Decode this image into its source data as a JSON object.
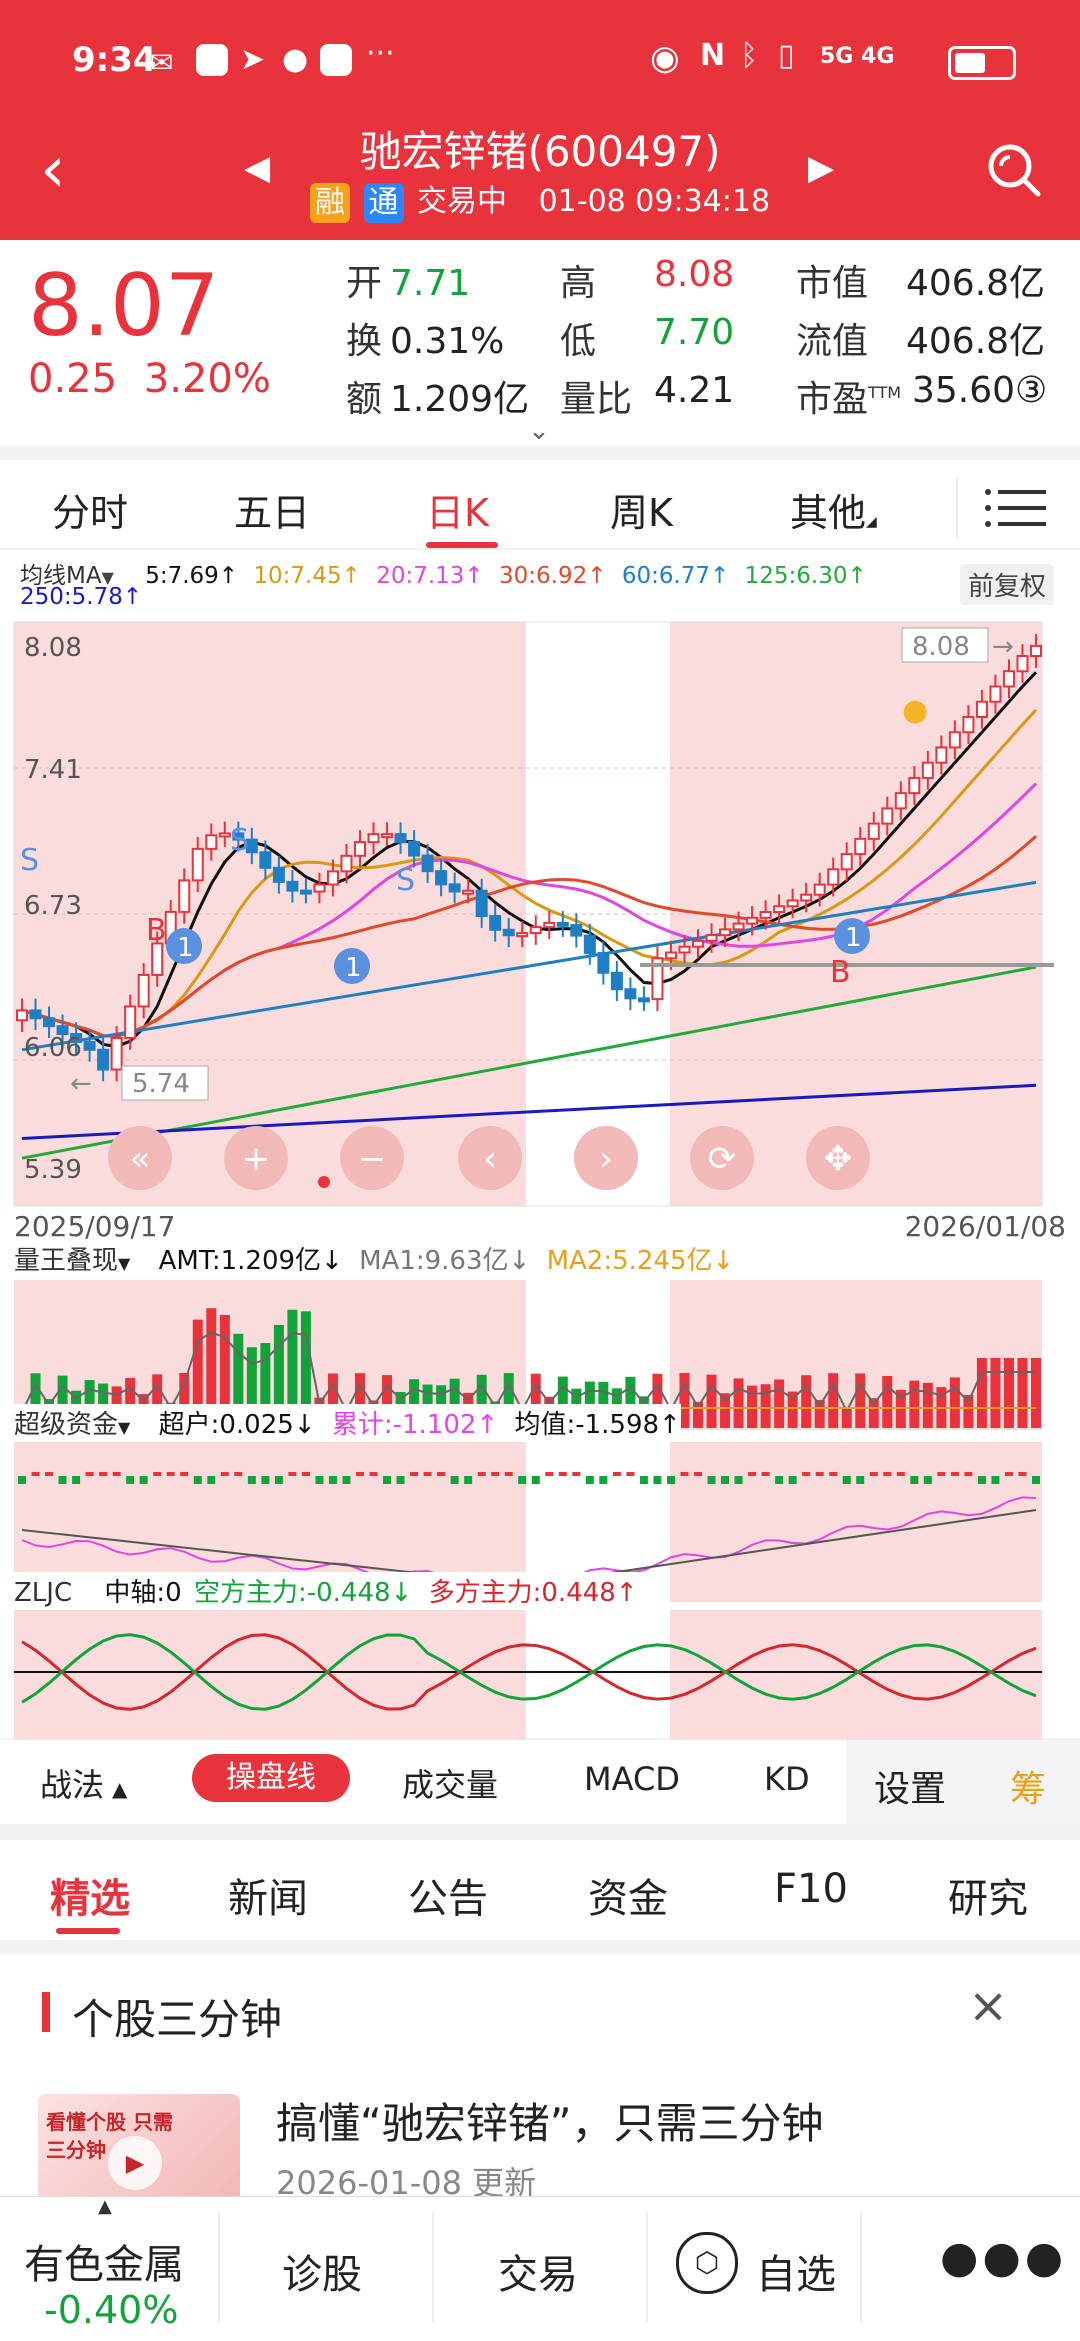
{
  "status": {
    "time": "9:34",
    "right": "5G 4G"
  },
  "header": {
    "title": "驰宏锌锗(600497)",
    "badge_rong": "融",
    "badge_tong": "通",
    "status_text": "交易中",
    "datetime": "01-08 09:34:18"
  },
  "quote": {
    "price": "8.07",
    "change": "0.25",
    "change_pct": "3.20%",
    "open_lbl": "开",
    "open": "7.71",
    "turnover_lbl": "换",
    "turnover": "0.31%",
    "amount_lbl": "额",
    "amount": "1.209亿",
    "high_lbl": "高",
    "high": "8.08",
    "low_lbl": "低",
    "low": "7.70",
    "vol_ratio_lbl": "量比",
    "vol_ratio": "4.21",
    "mktcap_lbl": "市值",
    "mktcap": "406.8亿",
    "float_lbl": "流值",
    "float_cap": "406.8亿",
    "pe_lbl": "市盈",
    "pe_sup": "TTM",
    "pe": "35.60③"
  },
  "tabs": [
    "分时",
    "五日",
    "日K",
    "周K",
    "其他"
  ],
  "chart": {
    "ma_label": "均线MA",
    "ma5": "5:7.69↑",
    "ma10": "10:7.45↑",
    "ma20": "20:7.13↑",
    "ma30": "30:6.92↑",
    "ma60": "60:6.77↑",
    "ma125": "125:6.30↑",
    "ma250": "250:5.78↑",
    "adjust": "前复权",
    "y_top": "8.08",
    "y2": "7.41",
    "y3": "6.73",
    "y4": "6.06",
    "y_bottom": "5.39",
    "high_tag": "8.08",
    "low_tag": "5.74",
    "date_start": "2025/09/17",
    "date_end": "2026/01/08",
    "vol_name": "量王叠现",
    "amt": "AMT:1.209亿↓",
    "ma1": "MA1:9.63亿↓",
    "ma2": "MA2:5.245亿↓",
    "fund_name": "超级资金",
    "super": "超户:0.025↓",
    "cum": "累计:-1.102↑",
    "avg": "均值:-1.598↑",
    "zljc_name": "ZLJC",
    "axis": "中轴:0",
    "bear": "空方主力:-0.448↓",
    "bull": "多方主力:0.448↑",
    "mark_s": "S",
    "mark_b": "B",
    "mark_1": "1"
  },
  "indicators": {
    "zhanfa": "战法",
    "caopan": "操盘线",
    "volume": "成交量",
    "macd": "MACD",
    "kd": "KD",
    "settings": "设置",
    "chou": "筹"
  },
  "segments": [
    "精选",
    "新闻",
    "公告",
    "资金",
    "F10",
    "研究"
  ],
  "article": {
    "section": "个股三分钟",
    "headline": "搞懂“驰宏锌锗”，只需三分钟",
    "date": "2026-01-08 更新",
    "thumb_text": "看懂个股 只需三分钟"
  },
  "bottom": {
    "sector": "有色金属",
    "sector_chg": "-0.40%",
    "diagnose": "诊股",
    "trade": "交易",
    "watch": "自选"
  },
  "colors": {
    "red": "#e8333d",
    "green": "#13a33b",
    "ma5": "#111111",
    "ma10": "#d89a12",
    "ma20": "#e046e0",
    "ma30": "#e04a2a",
    "ma60": "#1e7fc4",
    "ma125": "#21a93a",
    "ma250": "#1a1ac0"
  }
}
